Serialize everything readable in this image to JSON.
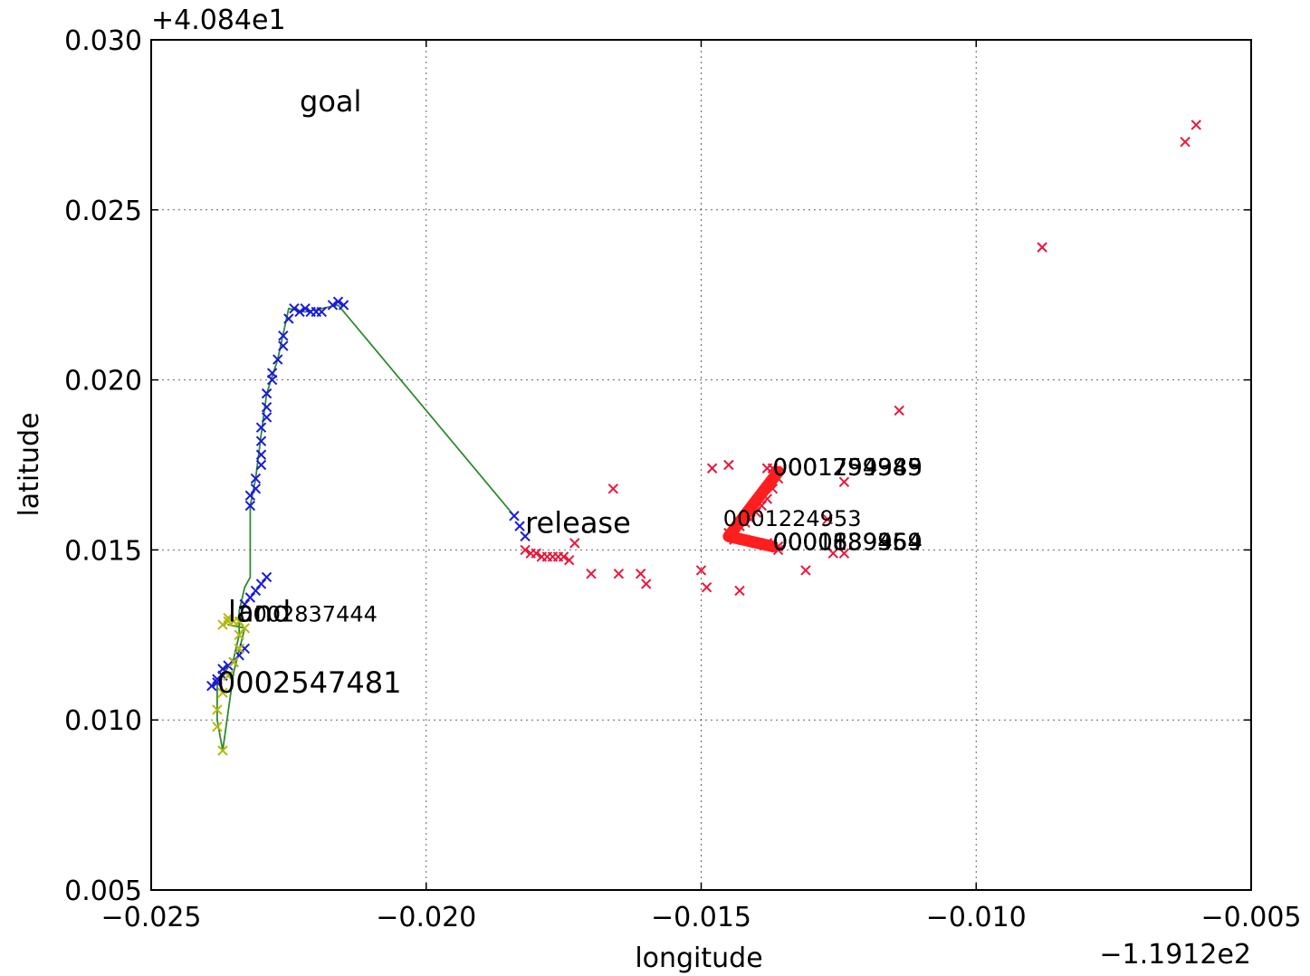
{
  "chart_data": {
    "type": "scatter",
    "xlabel": "longitude",
    "ylabel": "latitude",
    "x_offset_label": "−1.1912e2",
    "y_offset_label": "+4.084e1",
    "xlim": [
      -0.025,
      -0.005
    ],
    "ylim": [
      0.005,
      0.03
    ],
    "grid": true,
    "x_ticks": [
      -0.025,
      -0.02,
      -0.015,
      -0.01,
      -0.005
    ],
    "x_tick_labels": [
      "−0.025",
      "−0.020",
      "−0.015",
      "−0.010",
      "−0.005"
    ],
    "y_ticks": [
      0.005,
      0.01,
      0.015,
      0.02,
      0.025,
      0.03
    ],
    "y_tick_labels": [
      "0.005",
      "0.010",
      "0.015",
      "0.020",
      "0.025",
      "0.030"
    ],
    "series": [
      {
        "style": "line",
        "color": "#2e8b2e",
        "points": [
          [
            -0.0184,
            0.016
          ],
          [
            -0.0216,
            0.0222
          ],
          [
            -0.0222,
            0.022
          ],
          [
            -0.0225,
            0.0221
          ],
          [
            -0.0227,
            0.0206
          ],
          [
            -0.0229,
            0.0196
          ],
          [
            -0.023,
            0.0184
          ],
          [
            -0.0231,
            0.0171
          ],
          [
            -0.0232,
            0.0163
          ],
          [
            -0.0232,
            0.0142
          ],
          [
            -0.0233,
            0.0139
          ],
          [
            -0.0234,
            0.0132
          ],
          [
            -0.0234,
            0.0125
          ],
          [
            -0.0235,
            0.0118
          ],
          [
            -0.0237,
            0.0113
          ],
          [
            -0.0238,
            0.0111
          ],
          [
            -0.0238,
            0.01
          ],
          [
            -0.0237,
            0.0091
          ],
          [
            -0.0235,
            0.0114
          ],
          [
            -0.0233,
            0.0127
          ],
          [
            -0.0236,
            0.0128
          ]
        ]
      },
      {
        "style": "markers",
        "marker": "x",
        "color": "#1a1adc",
        "points": [
          [
            -0.0184,
            0.016
          ],
          [
            -0.0183,
            0.0157
          ],
          [
            -0.0182,
            0.0154
          ],
          [
            -0.0216,
            0.0223
          ],
          [
            -0.0215,
            0.0222
          ],
          [
            -0.0217,
            0.0222
          ],
          [
            -0.0219,
            0.022
          ],
          [
            -0.022,
            0.022
          ],
          [
            -0.0221,
            0.022
          ],
          [
            -0.0222,
            0.0221
          ],
          [
            -0.0223,
            0.022
          ],
          [
            -0.0224,
            0.0221
          ],
          [
            -0.0225,
            0.0218
          ],
          [
            -0.0226,
            0.0213
          ],
          [
            -0.0226,
            0.021
          ],
          [
            -0.0227,
            0.0206
          ],
          [
            -0.0228,
            0.0202
          ],
          [
            -0.0228,
            0.02
          ],
          [
            -0.0229,
            0.0196
          ],
          [
            -0.0229,
            0.0192
          ],
          [
            -0.0229,
            0.0189
          ],
          [
            -0.023,
            0.0186
          ],
          [
            -0.023,
            0.0182
          ],
          [
            -0.023,
            0.0178
          ],
          [
            -0.023,
            0.0175
          ],
          [
            -0.0231,
            0.0171
          ],
          [
            -0.0231,
            0.0168
          ],
          [
            -0.0232,
            0.0166
          ],
          [
            -0.0232,
            0.0163
          ],
          [
            -0.0229,
            0.0142
          ],
          [
            -0.023,
            0.014
          ],
          [
            -0.0231,
            0.0138
          ],
          [
            -0.0232,
            0.0136
          ],
          [
            -0.0233,
            0.0134
          ],
          [
            -0.0233,
            0.0121
          ],
          [
            -0.0234,
            0.0119
          ],
          [
            -0.0235,
            0.0117
          ],
          [
            -0.0236,
            0.0116
          ],
          [
            -0.0237,
            0.0115
          ],
          [
            -0.0237,
            0.0113
          ],
          [
            -0.0238,
            0.0112
          ],
          [
            -0.0238,
            0.0111
          ],
          [
            -0.0239,
            0.011
          ]
        ]
      },
      {
        "style": "markers",
        "marker": "x",
        "color": "#b5b80f",
        "points": [
          [
            -0.0237,
            0.0091
          ],
          [
            -0.0238,
            0.0098
          ],
          [
            -0.0238,
            0.0103
          ],
          [
            -0.0237,
            0.0108
          ],
          [
            -0.0236,
            0.0113
          ],
          [
            -0.0235,
            0.0117
          ],
          [
            -0.0234,
            0.0121
          ],
          [
            -0.0234,
            0.0125
          ],
          [
            -0.0233,
            0.0127
          ],
          [
            -0.0234,
            0.0129
          ],
          [
            -0.0235,
            0.0129
          ],
          [
            -0.0236,
            0.0129
          ],
          [
            -0.0237,
            0.0128
          ],
          [
            -0.0236,
            0.013
          ]
        ]
      },
      {
        "style": "markers",
        "marker": "x",
        "color": "#e8173a",
        "points": [
          [
            -0.0182,
            0.015
          ],
          [
            -0.0181,
            0.0149
          ],
          [
            -0.018,
            0.0149
          ],
          [
            -0.0179,
            0.0148
          ],
          [
            -0.0178,
            0.0148
          ],
          [
            -0.0177,
            0.0148
          ],
          [
            -0.0176,
            0.0148
          ],
          [
            -0.0175,
            0.0148
          ],
          [
            -0.0174,
            0.0147
          ],
          [
            -0.0173,
            0.0152
          ],
          [
            -0.017,
            0.0143
          ],
          [
            -0.0166,
            0.0168
          ],
          [
            -0.0165,
            0.0143
          ],
          [
            -0.0161,
            0.0143
          ],
          [
            -0.016,
            0.014
          ],
          [
            -0.015,
            0.0144
          ],
          [
            -0.0149,
            0.0139
          ],
          [
            -0.0148,
            0.0174
          ],
          [
            -0.0145,
            0.0175
          ],
          [
            -0.0143,
            0.0138
          ],
          [
            -0.0138,
            0.0174
          ],
          [
            -0.0137,
            0.0174
          ],
          [
            -0.0136,
            0.0171
          ],
          [
            -0.0137,
            0.0168
          ],
          [
            -0.0138,
            0.0165
          ],
          [
            -0.0139,
            0.0163
          ],
          [
            -0.014,
            0.0161
          ],
          [
            -0.0141,
            0.0159
          ],
          [
            -0.0142,
            0.0158
          ],
          [
            -0.0143,
            0.0157
          ],
          [
            -0.0144,
            0.0156
          ],
          [
            -0.0145,
            0.0155
          ],
          [
            -0.0144,
            0.0153
          ],
          [
            -0.0142,
            0.0153
          ],
          [
            -0.014,
            0.0152
          ],
          [
            -0.0138,
            0.0152
          ],
          [
            -0.0137,
            0.0151
          ],
          [
            -0.0136,
            0.0151
          ],
          [
            -0.0136,
            0.015
          ],
          [
            -0.0131,
            0.0144
          ],
          [
            -0.0127,
            0.0159
          ],
          [
            -0.0126,
            0.0149
          ],
          [
            -0.0124,
            0.0149
          ],
          [
            -0.0124,
            0.017
          ],
          [
            -0.0114,
            0.0191
          ],
          [
            -0.0088,
            0.0239
          ],
          [
            -0.0062,
            0.027
          ],
          [
            -0.006,
            0.0275
          ]
        ]
      },
      {
        "style": "thick-line",
        "color": "#ff1e1e",
        "points": [
          [
            -0.0136,
            0.0173
          ],
          [
            -0.0145,
            0.0154
          ],
          [
            -0.0137,
            0.0151
          ]
        ]
      }
    ],
    "annotations": [
      {
        "text": "goal",
        "x": -0.0223,
        "y": 0.0279,
        "size": "large"
      },
      {
        "text": "release",
        "x": -0.0182,
        "y": 0.0155,
        "size": "large"
      },
      {
        "text": "land",
        "x": -0.0236,
        "y": 0.0129,
        "size": "large"
      },
      {
        "text": "0002547481",
        "x": -0.0238,
        "y": 0.0108,
        "size": "large"
      },
      {
        "text": "0002837444",
        "x": -0.0234,
        "y": 0.0129,
        "size": "small"
      },
      {
        "text": "0001224953",
        "x": -0.0146,
        "y": 0.0157,
        "size": "small"
      },
      {
        "text": "0001799945",
        "x": -0.0137,
        "y": 0.0172,
        "size": "medium"
      },
      {
        "text": "0001754383",
        "x": -0.0137,
        "y": 0.0172,
        "size": "medium"
      },
      {
        "text": "0001299989",
        "x": -0.0137,
        "y": 0.0172,
        "size": "medium"
      },
      {
        "text": "0000839359",
        "x": -0.0137,
        "y": 0.015,
        "size": "medium"
      },
      {
        "text": "0000189454",
        "x": -0.0137,
        "y": 0.015,
        "size": "medium"
      },
      {
        "text": "0001639964",
        "x": -0.0137,
        "y": 0.015,
        "size": "medium"
      }
    ]
  }
}
